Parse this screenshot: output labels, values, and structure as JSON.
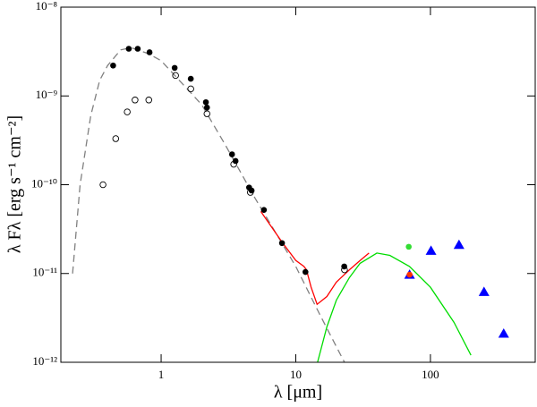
{
  "chart_data": {
    "type": "line",
    "xlabel": "λ [μm]",
    "ylabel": "λ Fλ [erg s⁻¹ cm⁻²]",
    "xscale": "log",
    "yscale": "log",
    "xlim": [
      0.18,
      600
    ],
    "ylim": [
      1e-12,
      1e-08
    ],
    "xticks": [
      1,
      10,
      100
    ],
    "yticks": [
      {
        "value": 1e-12,
        "label": "10⁻¹²"
      },
      {
        "value": 1e-11,
        "label": "10⁻¹¹"
      },
      {
        "value": 1e-10,
        "label": "10⁻¹⁰"
      },
      {
        "value": 1e-09,
        "label": "10⁻⁹"
      },
      {
        "value": 1e-08,
        "label": "10⁻⁸"
      }
    ],
    "series": [
      {
        "color": "#808080",
        "line": "dashed",
        "marker": "none",
        "x": [
          0.22,
          0.25,
          0.3,
          0.35,
          0.4,
          0.5,
          0.6,
          0.8,
          1,
          2,
          3,
          5,
          10,
          15,
          20,
          23
        ],
        "values": [
          1e-11,
          1e-10,
          6e-10,
          1.5e-09,
          2.2e-09,
          3.3e-09,
          3.5e-09,
          3e-09,
          2.5e-09,
          8e-10,
          2.8e-10,
          7e-11,
          1.2e-11,
          3.5e-12,
          1.5e-12,
          1e-12
        ]
      },
      {
        "color": "#ff0000",
        "line": "solid",
        "marker": "none",
        "x": [
          5.5,
          8,
          10,
          11.5,
          12,
          13,
          14.4,
          17,
          20,
          25,
          30,
          35
        ],
        "values": [
          5e-11,
          2.2e-11,
          1.4e-11,
          1.2e-11,
          1.1e-11,
          7e-12,
          4.5e-12,
          5.5e-12,
          8e-12,
          1.1e-11,
          1.4e-11,
          1.7e-11
        ]
      },
      {
        "color": "#00dd00",
        "line": "solid",
        "marker": "none",
        "x": [
          14.5,
          17,
          20,
          25,
          30,
          40,
          50,
          70,
          100,
          150,
          200
        ],
        "values": [
          1e-12,
          2.5e-12,
          5e-12,
          9e-12,
          1.3e-11,
          1.7e-11,
          1.6e-11,
          1.2e-11,
          7e-12,
          2.8e-12,
          1.2e-12
        ]
      },
      {
        "color": "#000000",
        "line": "none",
        "marker": "open-circle",
        "x": [
          0.37,
          0.46,
          0.56,
          0.64,
          0.81,
          1.28,
          1.66,
          2.19,
          3.46,
          4.6,
          23
        ],
        "values": [
          1e-10,
          3.3e-10,
          6.6e-10,
          9e-10,
          9e-10,
          1.7e-09,
          1.2e-09,
          6.3e-10,
          1.7e-10,
          8.2e-11,
          1.1e-11
        ]
      },
      {
        "color": "#000000",
        "line": "none",
        "marker": "circle",
        "x": [
          0.44,
          0.575,
          0.67,
          0.82,
          1.26,
          1.66,
          2.15,
          2.19,
          3.36,
          3.57,
          4.5,
          4.7,
          5.8,
          7.9,
          11.8,
          22.9
        ],
        "values": [
          2.2e-09,
          3.4e-09,
          3.4e-09,
          3.1e-09,
          2.07e-09,
          1.56e-09,
          8.5e-10,
          7.4e-10,
          2.2e-10,
          1.85e-10,
          9.3e-11,
          8.6e-11,
          5.2e-11,
          2.2e-11,
          1.04e-11,
          1.2e-11
        ]
      },
      {
        "color": "#0000ff",
        "line": "none",
        "marker": "triangle",
        "x": [
          70,
          101,
          163,
          250,
          350
        ],
        "values": [
          9.7e-12,
          1.8e-11,
          2.1e-11,
          6.2e-12,
          2.1e-12
        ]
      },
      {
        "color": "#ff3300",
        "line": "none",
        "marker": "circle",
        "x": [
          70
        ],
        "values": [
          9.7e-12
        ]
      },
      {
        "color": "#33dd33",
        "line": "none",
        "marker": "circle",
        "x": [
          69
        ],
        "values": [
          2e-11
        ]
      }
    ]
  }
}
